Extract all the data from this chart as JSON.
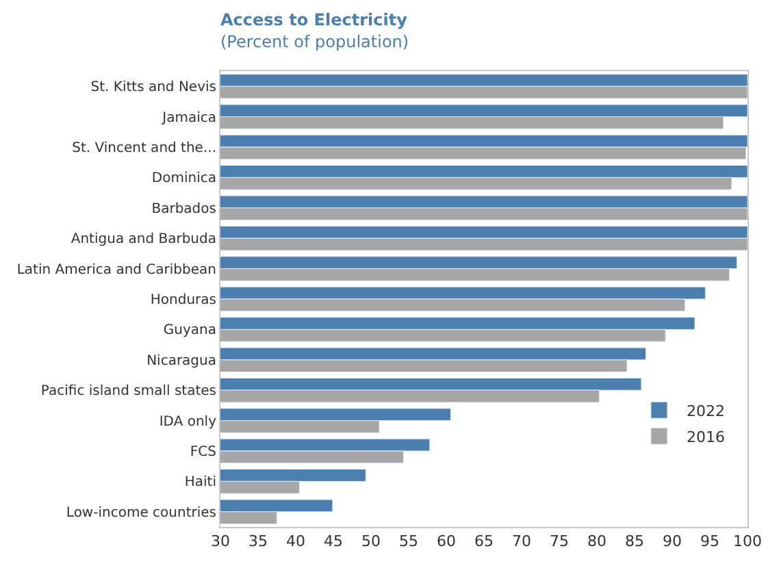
{
  "chart_data": {
    "type": "bar",
    "orientation": "horizontal",
    "title": "Access to Electricity",
    "subtitle": "(Percent of population)",
    "categories": [
      "St. Kitts and Nevis",
      "Jamaica",
      "St. Vincent and the...",
      "Dominica",
      "Barbados",
      "Antigua and Barbuda",
      "Latin America and Caribbean",
      "Honduras",
      "Guyana",
      "Nicaragua",
      "Pacific island small states",
      "IDA only",
      "FCS",
      "Haiti",
      "Low-income countries"
    ],
    "series": [
      {
        "name": "2022",
        "color": "#4a7fb0",
        "values": [
          100,
          100,
          100,
          100,
          100,
          100,
          98.6,
          94.4,
          93.0,
          86.5,
          85.9,
          60.6,
          57.8,
          49.3,
          44.9
        ]
      },
      {
        "name": "2016",
        "color": "#a6a6a7",
        "values": [
          100,
          96.8,
          99.8,
          97.9,
          100,
          100,
          97.6,
          91.7,
          89.1,
          84.0,
          80.3,
          51.1,
          54.3,
          40.5,
          37.5
        ]
      }
    ],
    "xlim": [
      30,
      100
    ],
    "xticks": [
      30,
      35,
      40,
      45,
      50,
      55,
      60,
      65,
      70,
      75,
      80,
      85,
      90,
      95,
      100
    ],
    "legend": "bottom right"
  }
}
